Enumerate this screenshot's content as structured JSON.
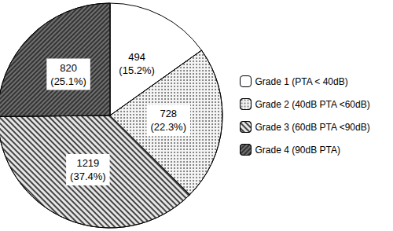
{
  "chart_data": {
    "type": "pie",
    "categories": [
      "Grade 1 (PTA < 40dB)",
      "Grade 2 (40dB PTA <60dB)",
      "Grade 3 (60dB PTA <90dB)",
      "Grade 4 (90dB PTA)"
    ],
    "values": [
      494,
      728,
      1219,
      820
    ],
    "value_labels": [
      "494\n(15.2%)",
      "728\n(22.3%)",
      "1219\n(37.4%)",
      "820\n(25.1%)"
    ],
    "colors": [
      "#ffffff",
      "#f4f4f4",
      "#e6e6e6",
      "#707070"
    ],
    "data_labels": true,
    "legend": "right"
  }
}
